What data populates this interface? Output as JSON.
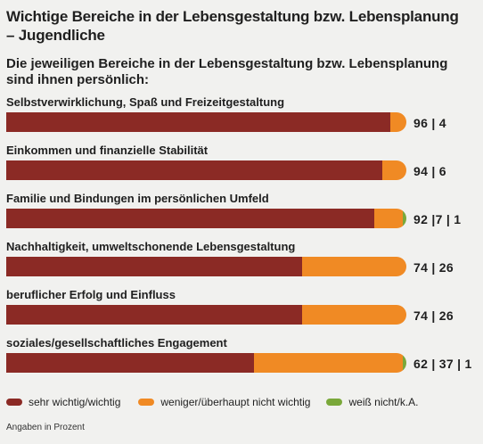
{
  "title_lines": [
    "Wichtige Bereiche in der Lebensgestaltung bzw. Lebensplanung",
    "– Jugendliche"
  ],
  "subtitle_lines": [
    "Die jeweiligen Bereiche in der Lebensgestaltung bzw. Lebensplanung",
    "sind ihnen persönlich:"
  ],
  "note": "Angaben in Prozent",
  "colors": {
    "wichtig": "#8b2a25",
    "weniger": "#f08a24",
    "weissnicht": "#7aa83a"
  },
  "chart_data": {
    "type": "bar",
    "orientation": "horizontal",
    "stacked": true,
    "categories": [
      "Selbstverwirklichung, Spaß und Freizeitgestaltung",
      "Einkommen und finanzielle Stabilität",
      "Familie und Bindungen im persönlichen Umfeld",
      "Nachhaltigkeit, umweltschonende Lebensgestaltung",
      "beruflicher Erfolg und Einfluss",
      "soziales/gesellschaftliches Engagement"
    ],
    "series": [
      {
        "name": "sehr wichtig/wichtig",
        "values": [
          96,
          94,
          92,
          74,
          74,
          62
        ]
      },
      {
        "name": "weniger/überhaupt nicht wichtig",
        "values": [
          4,
          6,
          7,
          26,
          26,
          37
        ]
      },
      {
        "name": "weiß nicht/k.A.",
        "values": [
          0,
          0,
          1,
          0,
          0,
          1
        ]
      }
    ],
    "value_labels": [
      "96 | 4",
      "94 | 6",
      "92 |7 | 1",
      "74 | 26",
      "74 | 26",
      "62 | 37 | 1"
    ],
    "xlim": [
      0,
      100
    ],
    "legend": "bottom"
  }
}
